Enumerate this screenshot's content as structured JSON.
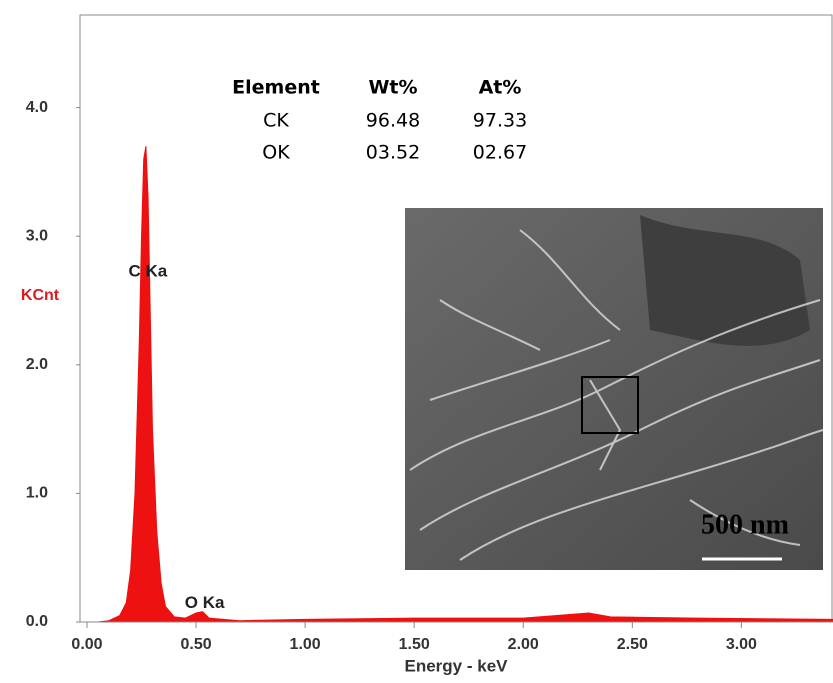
{
  "chart_data": {
    "type": "area",
    "x_label": "Energy - keV",
    "y_label": "KCnt",
    "color": "#ee1111",
    "xlim": [
      0,
      3.42
    ],
    "ylim": [
      0,
      4.72
    ],
    "xticks": [
      {
        "value": 0,
        "label": "0.00"
      },
      {
        "value": 0.5,
        "label": "0.50"
      },
      {
        "value": 1,
        "label": "1.00"
      },
      {
        "value": 1.5,
        "label": "1.50"
      },
      {
        "value": 2,
        "label": "2.00"
      },
      {
        "value": 2.5,
        "label": "2.50"
      },
      {
        "value": 3,
        "label": "3.00"
      }
    ],
    "yticks": [
      {
        "value": 0,
        "label": "0.0"
      },
      {
        "value": 1,
        "label": "1.0"
      },
      {
        "value": 2,
        "label": "2.0"
      },
      {
        "value": 3,
        "label": "3.0"
      },
      {
        "value": 4,
        "label": "4.0"
      }
    ],
    "x": [
      0.05,
      0.1,
      0.15,
      0.18,
      0.2,
      0.22,
      0.24,
      0.25,
      0.26,
      0.27,
      0.28,
      0.29,
      0.3,
      0.32,
      0.34,
      0.36,
      0.4,
      0.45,
      0.5,
      0.53,
      0.56,
      0.7,
      1.0,
      1.5,
      2.0,
      2.3,
      2.4,
      2.8,
      3.42
    ],
    "values": [
      0,
      0.01,
      0.05,
      0.15,
      0.4,
      1.0,
      2.2,
      3.0,
      3.6,
      3.7,
      3.3,
      2.4,
      1.5,
      0.7,
      0.3,
      0.12,
      0.04,
      0.03,
      0.07,
      0.08,
      0.03,
      0.01,
      0.02,
      0.03,
      0.03,
      0.07,
      0.04,
      0.03,
      0.02
    ],
    "annotations": [
      {
        "text": "C Ka",
        "x": 0.27,
        "y": 2.7
      },
      {
        "text": "O Ka",
        "x": 0.53,
        "y": 0.12
      }
    ]
  },
  "table": {
    "header": [
      "Element",
      "Wt%",
      "At%"
    ],
    "rows": [
      [
        "CK",
        "96.48",
        "97.33"
      ],
      [
        "OK",
        "03.52",
        "02.67"
      ]
    ]
  },
  "image": {
    "scale_label": "500 nm"
  }
}
